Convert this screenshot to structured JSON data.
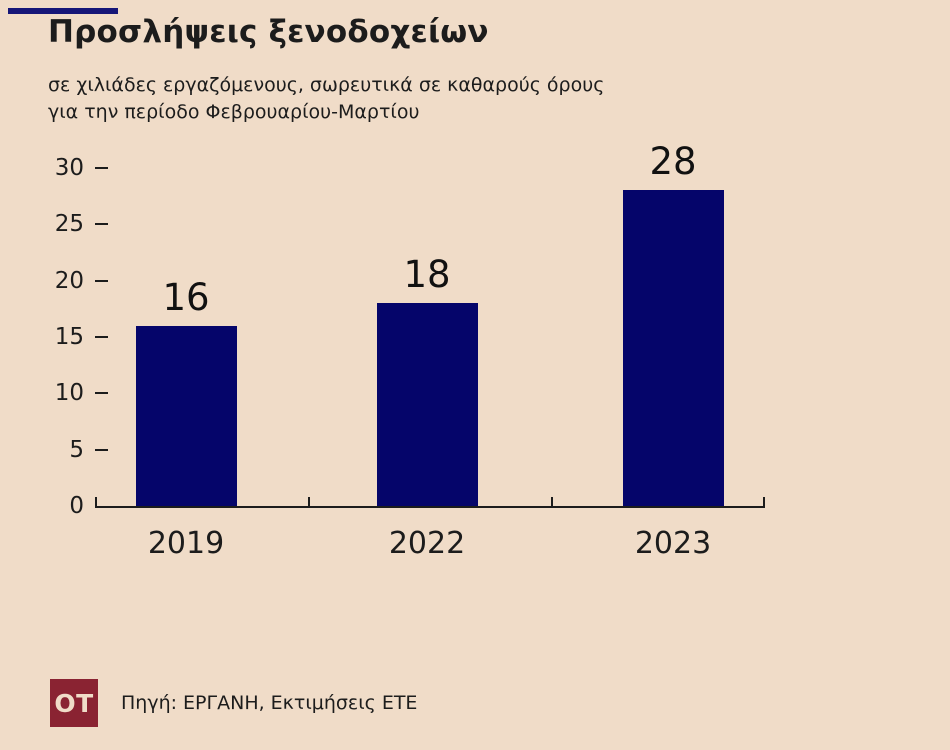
{
  "page": {
    "background_color": "#f0dcc8",
    "text_color": "#1c1c1c"
  },
  "header": {
    "accent_color": "#161678"
  },
  "chart_data": {
    "type": "bar",
    "title": "Προσλήψεις ξενοδοχείων",
    "subtitle_lines": [
      "σε χιλιάδες εργαζόμενους, σωρευτικά σε καθαρούς όρους",
      "για την περίοδο Φεβρουαρίου-Μαρτίου"
    ],
    "categories": [
      "2019",
      "2022",
      "2023"
    ],
    "values": [
      16,
      18,
      28
    ],
    "show_value_labels": true,
    "xlabel": "",
    "ylabel": "",
    "ylim": [
      0,
      30
    ],
    "yticks": [
      0,
      5,
      10,
      15,
      20,
      25,
      30
    ],
    "grid": false,
    "legend": "none",
    "bar_color": "#05056a",
    "axis_color": "#1c1c1c"
  },
  "footer": {
    "logo_text": "OT",
    "logo_bg_color": "#8a2332",
    "logo_text_color": "#f0dcc8",
    "source": "Πηγή: ΕΡΓΑΝΗ, Εκτιμήσεις ΕΤΕ"
  }
}
